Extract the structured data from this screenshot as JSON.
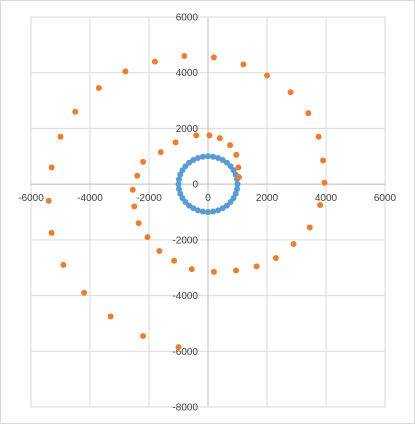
{
  "chart_data": {
    "type": "scatter",
    "title": "",
    "xlabel": "",
    "ylabel": "",
    "xlim": [
      -6000,
      6000
    ],
    "ylim": [
      -8000,
      6000
    ],
    "x_ticks": [
      -6000,
      -4000,
      -2000,
      0,
      2000,
      4000,
      6000
    ],
    "y_ticks": [
      -8000,
      -6000,
      -4000,
      -2000,
      0,
      2000,
      4000,
      6000
    ],
    "x_tick_labels": [
      "-6000",
      "-4000",
      "-2000",
      "0",
      "2000",
      "4000",
      "6000"
    ],
    "y_tick_labels": [
      "-8000",
      "-6000",
      "-4000",
      "-2000",
      "0",
      "2000",
      "4000",
      "6000"
    ],
    "grid": true,
    "legend": "none",
    "series": [
      {
        "color": "#5b9bd5",
        "points": [
          [
            1000,
            0
          ],
          [
            984,
            174
          ],
          [
            940,
            342
          ],
          [
            866,
            500
          ],
          [
            766,
            643
          ],
          [
            643,
            766
          ],
          [
            500,
            866
          ],
          [
            342,
            940
          ],
          [
            174,
            984
          ],
          [
            0,
            1000
          ],
          [
            -174,
            984
          ],
          [
            -342,
            940
          ],
          [
            -500,
            866
          ],
          [
            -643,
            766
          ],
          [
            -766,
            643
          ],
          [
            -866,
            500
          ],
          [
            -940,
            342
          ],
          [
            -984,
            174
          ],
          [
            -1000,
            0
          ],
          [
            -984,
            -174
          ],
          [
            -940,
            -342
          ],
          [
            -866,
            -500
          ],
          [
            -766,
            -643
          ],
          [
            -643,
            -766
          ],
          [
            -500,
            -866
          ],
          [
            -342,
            -940
          ],
          [
            -174,
            -984
          ],
          [
            0,
            -1000
          ],
          [
            174,
            -984
          ],
          [
            342,
            -940
          ],
          [
            500,
            -866
          ],
          [
            643,
            -766
          ],
          [
            766,
            -643
          ],
          [
            866,
            -500
          ],
          [
            940,
            -342
          ],
          [
            984,
            -174
          ]
        ]
      },
      {
        "color": "#ed7d31",
        "points": [
          [
            1050,
            250
          ],
          [
            1030,
            600
          ],
          [
            960,
            1050
          ],
          [
            750,
            1400
          ],
          [
            400,
            1650
          ],
          [
            50,
            1750
          ],
          [
            -400,
            1750
          ],
          [
            -1100,
            1500
          ],
          [
            -1600,
            1150
          ],
          [
            -2200,
            800
          ],
          [
            -2400,
            300
          ],
          [
            -2550,
            -200
          ],
          [
            -2500,
            -800
          ],
          [
            -2350,
            -1400
          ],
          [
            -2050,
            -1900
          ],
          [
            -1650,
            -2400
          ],
          [
            -1150,
            -2750
          ],
          [
            -550,
            -3050
          ],
          [
            200,
            -3150
          ],
          [
            950,
            -3100
          ],
          [
            1650,
            -2950
          ],
          [
            2300,
            -2650
          ],
          [
            2900,
            -2150
          ],
          [
            3450,
            -1550
          ],
          [
            3800,
            -750
          ],
          [
            3950,
            50
          ],
          [
            3900,
            850
          ],
          [
            3750,
            1700
          ],
          [
            3400,
            2550
          ],
          [
            2800,
            3300
          ],
          [
            2000,
            3900
          ],
          [
            1200,
            4300
          ],
          [
            200,
            4550
          ],
          [
            -800,
            4600
          ],
          [
            -1800,
            4400
          ],
          [
            -2800,
            4050
          ],
          [
            -3700,
            3450
          ],
          [
            -4500,
            2600
          ],
          [
            -5000,
            1700
          ],
          [
            -5300,
            600
          ],
          [
            -5400,
            -600
          ],
          [
            -5300,
            -1750
          ],
          [
            -4900,
            -2900
          ],
          [
            -4200,
            -3900
          ],
          [
            -3300,
            -4750
          ],
          [
            -2200,
            -5450
          ],
          [
            -1000,
            -5850
          ]
        ]
      }
    ]
  }
}
